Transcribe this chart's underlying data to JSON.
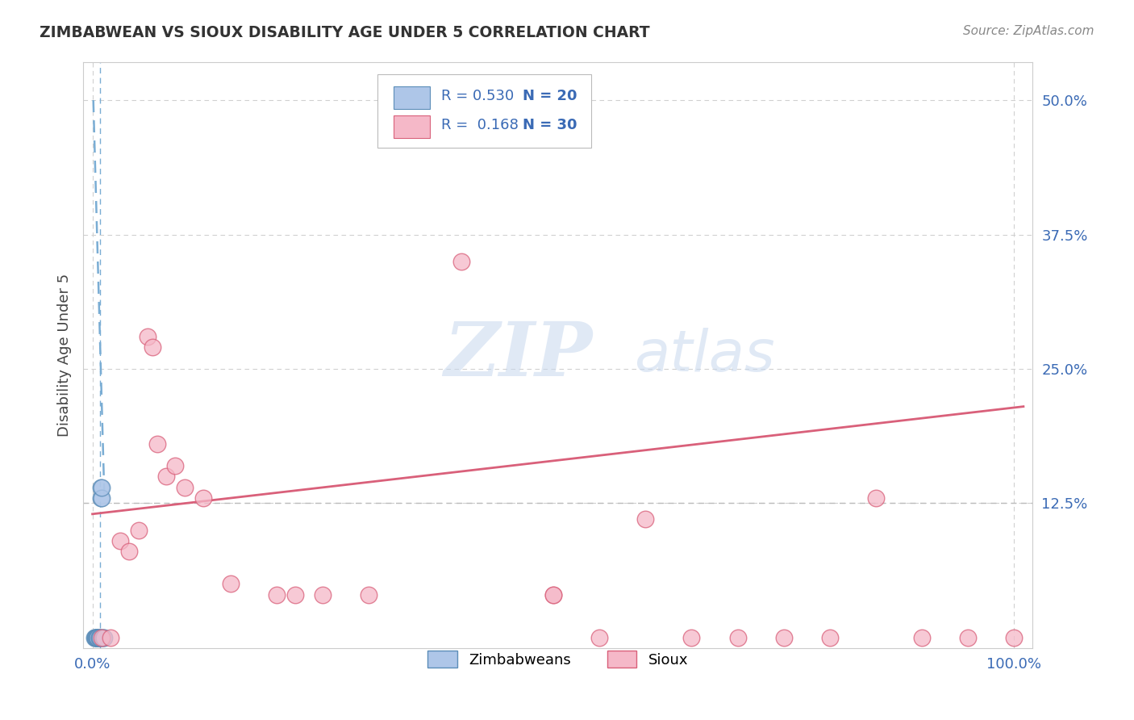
{
  "title": "ZIMBABWEAN VS SIOUX DISABILITY AGE UNDER 5 CORRELATION CHART",
  "source": "Source: ZipAtlas.com",
  "ylabel": "Disability Age Under 5",
  "xlim": [
    -0.01,
    1.02
  ],
  "ylim": [
    -0.01,
    0.535
  ],
  "xticks": [
    0.0,
    1.0
  ],
  "xticklabels": [
    "0.0%",
    "100.0%"
  ],
  "yticks": [
    0.125,
    0.25,
    0.375,
    0.5
  ],
  "yticklabels": [
    "12.5%",
    "25.0%",
    "37.5%",
    "50.0%"
  ],
  "background_color": "#ffffff",
  "zimbabwean_color": "#aec6e8",
  "zimbabwean_edge_color": "#5b8db8",
  "sioux_color": "#f5b8c8",
  "sioux_edge_color": "#d9607a",
  "zim_trendline_color": "#7aadd4",
  "sioux_trendline_color": "#d9607a",
  "ref_hline_color": "#bbbbbb",
  "ref_vline_color": "#7aadd4",
  "zimbabwean_x": [
    0.002,
    0.003,
    0.003,
    0.004,
    0.004,
    0.005,
    0.005,
    0.006,
    0.006,
    0.007,
    0.007,
    0.008,
    0.008,
    0.009,
    0.009,
    0.01,
    0.01,
    0.011,
    0.012,
    0.013
  ],
  "zimbabwean_y": [
    0.0,
    0.0,
    0.0,
    0.0,
    0.0,
    0.0,
    0.0,
    0.0,
    0.0,
    0.0,
    0.0,
    0.0,
    0.0,
    0.13,
    0.14,
    0.13,
    0.14,
    0.0,
    0.0,
    0.0
  ],
  "sioux_x": [
    0.01,
    0.02,
    0.03,
    0.04,
    0.05,
    0.06,
    0.065,
    0.07,
    0.08,
    0.09,
    0.1,
    0.12,
    0.15,
    0.2,
    0.22,
    0.25,
    0.3,
    0.4,
    0.5,
    0.5,
    0.55,
    0.6,
    0.65,
    0.7,
    0.75,
    0.8,
    0.85,
    0.9,
    0.95,
    1.0
  ],
  "sioux_y": [
    0.0,
    0.0,
    0.09,
    0.08,
    0.1,
    0.28,
    0.27,
    0.18,
    0.15,
    0.16,
    0.14,
    0.13,
    0.05,
    0.04,
    0.04,
    0.04,
    0.04,
    0.35,
    0.04,
    0.04,
    0.0,
    0.11,
    0.0,
    0.0,
    0.0,
    0.0,
    0.13,
    0.0,
    0.0,
    0.0
  ],
  "zim_trendline_x": [
    0.001,
    0.013
  ],
  "zim_trendline_y": [
    0.5,
    0.13
  ],
  "sioux_trendline_x": [
    0.0,
    1.01
  ],
  "sioux_trendline_y": [
    0.115,
    0.215
  ],
  "dashed_hline_y": 0.125,
  "dashed_vline_x": 0.008
}
